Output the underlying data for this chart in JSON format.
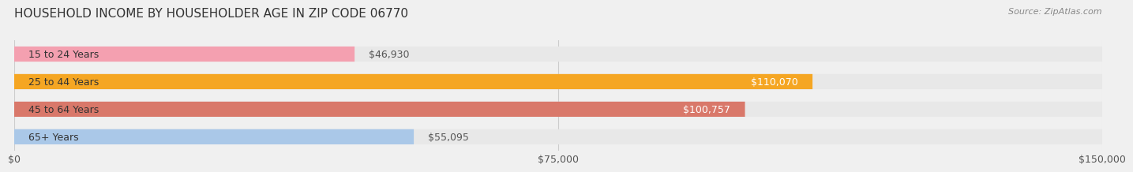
{
  "title": "HOUSEHOLD INCOME BY HOUSEHOLDER AGE IN ZIP CODE 06770",
  "source": "Source: ZipAtlas.com",
  "categories": [
    "15 to 24 Years",
    "25 to 44 Years",
    "45 to 64 Years",
    "65+ Years"
  ],
  "values": [
    46930,
    110070,
    100757,
    55095
  ],
  "bar_colors": [
    "#f4a0b0",
    "#f5a623",
    "#d9786a",
    "#aac8e8"
  ],
  "label_colors": [
    "#555555",
    "#ffffff",
    "#ffffff",
    "#555555"
  ],
  "xlim": [
    0,
    150000
  ],
  "xticks": [
    0,
    75000,
    150000
  ],
  "xtick_labels": [
    "$0",
    "$75,000",
    "$150,000"
  ],
  "bar_height": 0.55,
  "background_color": "#f0f0f0",
  "bar_bg_color": "#e8e8e8",
  "title_fontsize": 11,
  "source_fontsize": 8,
  "label_fontsize": 9,
  "tick_fontsize": 9,
  "category_fontsize": 9
}
